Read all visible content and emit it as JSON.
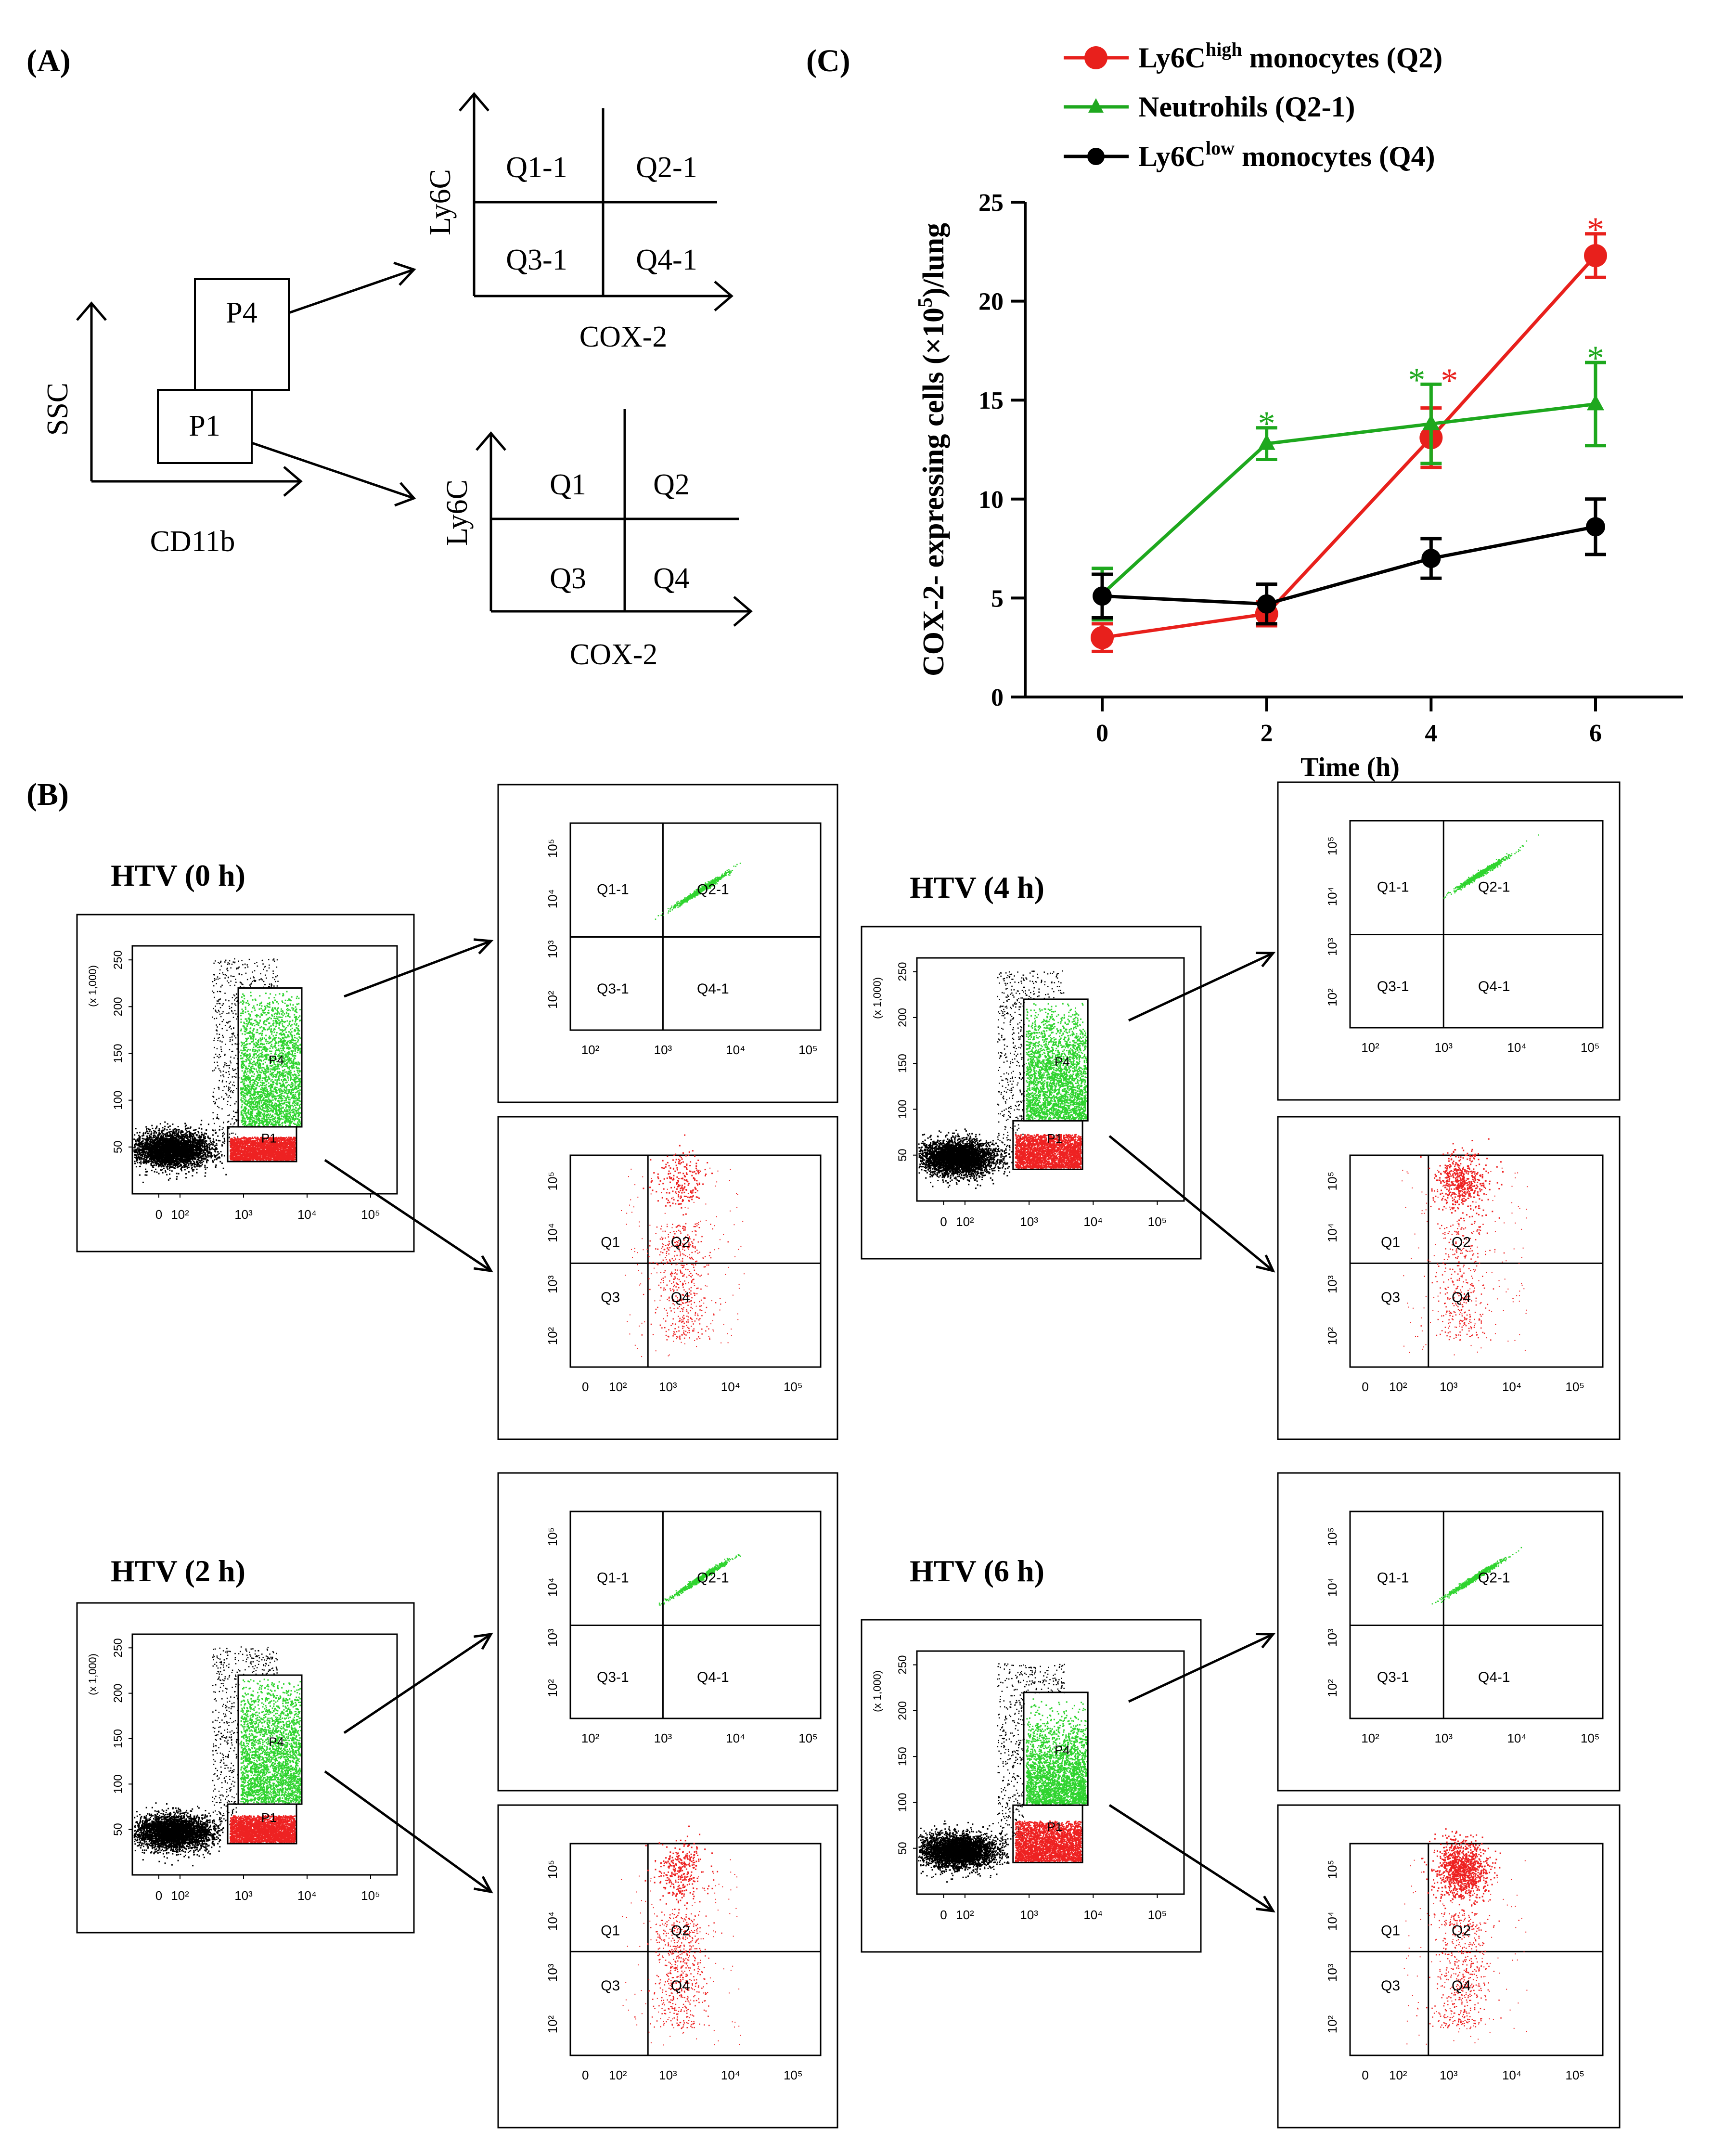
{
  "panels": {
    "a_label": "(A)",
    "b_label": "(B)",
    "c_label": "(C)"
  },
  "schematic": {
    "ssc_axis": "SSC",
    "cd11b_axis": "CD11b",
    "gate_p1": "P1",
    "gate_p4": "P4",
    "ly6c_axis": "Ly6C",
    "cox2_axis": "COX-2",
    "p4_quadrants": [
      "Q1-1",
      "Q2-1",
      "Q3-1",
      "Q4-1"
    ],
    "p1_quadrants": [
      "Q1",
      "Q2",
      "Q3",
      "Q4"
    ]
  },
  "flow": {
    "scale_note": "(x 1,000)",
    "y_ticks_main": [
      "50",
      "100",
      "150",
      "200",
      "250"
    ],
    "x_ticks_main": [
      "0",
      "10²",
      "10³",
      "10⁴",
      "10⁵"
    ],
    "log_ticks": [
      "10²",
      "10³",
      "10⁴",
      "10⁵"
    ],
    "log_ticks_zero": [
      "0",
      "10²",
      "10³",
      "10⁴",
      "10⁵"
    ],
    "p4_quadrants": [
      "Q1-1",
      "Q2-1",
      "Q3-1",
      "Q4-1"
    ],
    "p1_quadrants": [
      "Q1",
      "Q2",
      "Q3",
      "Q4"
    ],
    "p4_gate": "P4",
    "p1_gate": "P1",
    "timepoints": [
      {
        "label": "HTV (0 h)"
      },
      {
        "label": "HTV (4 h)"
      },
      {
        "label": "HTV (2 h)"
      },
      {
        "label": "HTV (6 h)"
      }
    ]
  },
  "chart_data": {
    "type": "line",
    "title": "",
    "xlabel": "Time (h)",
    "ylabel": "COX-2- expressing  cells (×10⁵)/lung",
    "ylabel_parts": {
      "pre": "COX-2- expressing  cells (×10",
      "sup": "5",
      "post": ")/lung"
    },
    "x": [
      0,
      2,
      4,
      6
    ],
    "x_tick_labels": [
      "0",
      "2",
      "4",
      "6"
    ],
    "y_ticks": [
      "0",
      "5",
      "10",
      "15",
      "20",
      "25"
    ],
    "xlim": [
      -1,
      7
    ],
    "ylim": [
      0,
      25
    ],
    "series": [
      {
        "name": "Ly6Chigh monocytes (Q2)",
        "legend": {
          "pre": "Ly6C",
          "sup": "high",
          "post": " monocytes (Q2)"
        },
        "color": "#e8201c",
        "marker": "circle",
        "values": [
          3.0,
          4.2,
          13.1,
          22.3
        ],
        "errors": [
          0.7,
          0.6,
          1.5,
          1.1
        ],
        "significance": [
          "",
          "",
          "*",
          "*"
        ]
      },
      {
        "name": "Neutrohils (Q2-1)",
        "legend": {
          "pre": "Neutrohils (Q2-1)",
          "sup": "",
          "post": ""
        },
        "color": "#1ea81e",
        "marker": "triangle",
        "values": [
          5.2,
          12.8,
          13.8,
          14.8
        ],
        "errors": [
          1.3,
          0.8,
          2.0,
          2.1
        ],
        "significance": [
          "",
          "*",
          "*",
          "*"
        ]
      },
      {
        "name": "Ly6Clow monocytes (Q4)",
        "legend": {
          "pre": "Ly6C",
          "sup": "low",
          "post": " monocytes (Q4)"
        },
        "color": "#000000",
        "marker": "circle",
        "values": [
          5.1,
          4.7,
          7.0,
          8.6
        ],
        "errors": [
          1.1,
          1.0,
          1.0,
          1.4
        ],
        "significance": [
          "",
          "",
          "",
          ""
        ]
      }
    ]
  }
}
